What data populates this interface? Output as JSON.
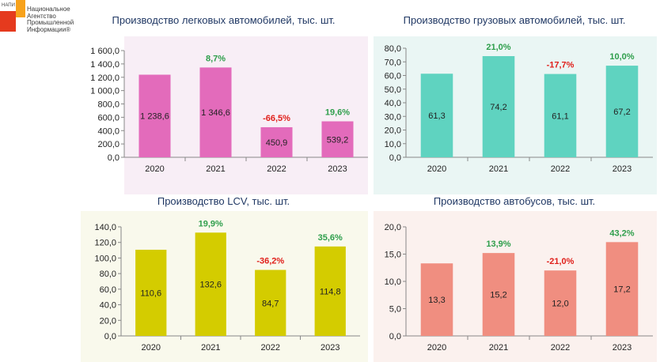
{
  "logo": {
    "tag": "НАПИ",
    "lines": [
      "Национальное",
      "Агентство",
      "Промышленной",
      "Информации®"
    ]
  },
  "colors": {
    "passenger_bar": "#e36bbb",
    "passenger_bg": "#f8eef6",
    "truck_bar": "#5fd3c0",
    "truck_bg": "#eaf6f4",
    "lcv_bar": "#d4cc00",
    "lcv_bg": "#f9f9ec",
    "bus_bar": "#f08e80",
    "bus_bg": "#fbf1ee",
    "pct_up": "#2e9e4b",
    "pct_down": "#e0201b"
  },
  "chart_data": [
    {
      "type": "bar",
      "title": "Производство легковых автомобилей, тыс. шт.",
      "categories": [
        "2020",
        "2021",
        "2022",
        "2023"
      ],
      "values": [
        1238.6,
        1346.6,
        450.9,
        539.2
      ],
      "value_labels": [
        "1 238,6",
        "1 346,6",
        "450,9",
        "539,2"
      ],
      "changes": [
        "",
        "8,7%",
        "-66,5%",
        "19,6%"
      ],
      "change_signs": [
        "",
        "up",
        "down",
        "up"
      ],
      "ylim": [
        0,
        1600
      ],
      "yticks": [
        0,
        200,
        400,
        600,
        800,
        1000,
        1200,
        1400,
        1600
      ],
      "ytick_labels": [
        "0,0",
        "200,0",
        "400,0",
        "600,0",
        "800,0",
        "1 000,0",
        "1 200,0",
        "1 400,0",
        "1 600,0"
      ]
    },
    {
      "type": "bar",
      "title": "Производство грузовых автомобилей, тыс. шт.",
      "categories": [
        "2020",
        "2021",
        "2022",
        "2023"
      ],
      "values": [
        61.3,
        74.2,
        61.1,
        67.2
      ],
      "value_labels": [
        "61,3",
        "74,2",
        "61,1",
        "67,2"
      ],
      "changes": [
        "",
        "21,0%",
        "-17,7%",
        "10,0%"
      ],
      "change_signs": [
        "",
        "up",
        "down",
        "up"
      ],
      "ylim": [
        0,
        80
      ],
      "yticks": [
        0,
        10,
        20,
        30,
        40,
        50,
        60,
        70,
        80
      ],
      "ytick_labels": [
        "0,0",
        "10,0",
        "20,0",
        "30,0",
        "40,0",
        "50,0",
        "60,0",
        "70,0",
        "80,0"
      ]
    },
    {
      "type": "bar",
      "title": "Производство LCV, тыс. шт.",
      "categories": [
        "2020",
        "2021",
        "2022",
        "2023"
      ],
      "values": [
        110.6,
        132.6,
        84.7,
        114.8
      ],
      "value_labels": [
        "110,6",
        "132,6",
        "84,7",
        "114,8"
      ],
      "changes": [
        "",
        "19,9%",
        "-36,2%",
        "35,6%"
      ],
      "change_signs": [
        "",
        "up",
        "down",
        "up"
      ],
      "ylim": [
        0,
        140
      ],
      "yticks": [
        0,
        20,
        40,
        60,
        80,
        100,
        120,
        140
      ],
      "ytick_labels": [
        "0,0",
        "20,0",
        "40,0",
        "60,0",
        "80,0",
        "100,0",
        "120,0",
        "140,0"
      ]
    },
    {
      "type": "bar",
      "title": "Производство автобусов, тыс. шт.",
      "categories": [
        "2020",
        "2021",
        "2022",
        "2023"
      ],
      "values": [
        13.3,
        15.2,
        12.0,
        17.2
      ],
      "value_labels": [
        "13,3",
        "15,2",
        "12,0",
        "17,2"
      ],
      "changes": [
        "",
        "13,9%",
        "-21,0%",
        "43,2%"
      ],
      "change_signs": [
        "",
        "up",
        "down",
        "up"
      ],
      "ylim": [
        0,
        20
      ],
      "yticks": [
        0,
        5,
        10,
        15,
        20
      ],
      "ytick_labels": [
        "0,0",
        "5,0",
        "10,0",
        "15,0",
        "20,0"
      ]
    }
  ]
}
